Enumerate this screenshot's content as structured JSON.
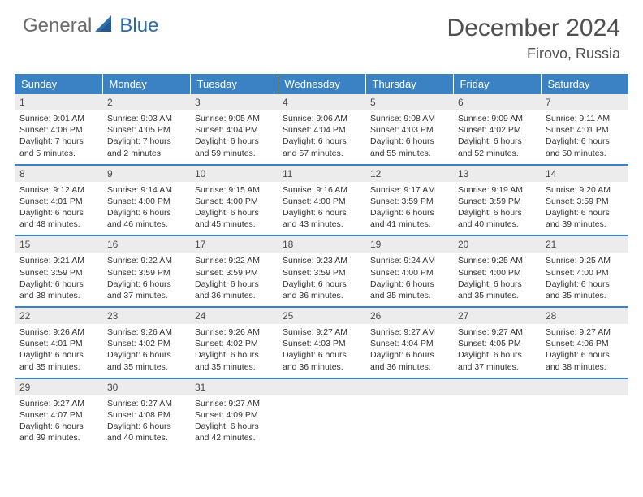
{
  "brand": {
    "part1": "General",
    "part2": "Blue"
  },
  "title": {
    "month": "December 2024",
    "location": "Firovo, Russia"
  },
  "colors": {
    "header_bg": "#3b82c4",
    "header_text": "#ffffff",
    "daynum_bg": "#ececec",
    "row_divider": "#3b82c4",
    "brand_gray": "#6b6b6b",
    "brand_blue": "#2e6ca8"
  },
  "weekdays": [
    "Sunday",
    "Monday",
    "Tuesday",
    "Wednesday",
    "Thursday",
    "Friday",
    "Saturday"
  ],
  "weeks": [
    [
      {
        "n": "1",
        "sr": "Sunrise: 9:01 AM",
        "ss": "Sunset: 4:06 PM",
        "d1": "Daylight: 7 hours",
        "d2": "and 5 minutes."
      },
      {
        "n": "2",
        "sr": "Sunrise: 9:03 AM",
        "ss": "Sunset: 4:05 PM",
        "d1": "Daylight: 7 hours",
        "d2": "and 2 minutes."
      },
      {
        "n": "3",
        "sr": "Sunrise: 9:05 AM",
        "ss": "Sunset: 4:04 PM",
        "d1": "Daylight: 6 hours",
        "d2": "and 59 minutes."
      },
      {
        "n": "4",
        "sr": "Sunrise: 9:06 AM",
        "ss": "Sunset: 4:04 PM",
        "d1": "Daylight: 6 hours",
        "d2": "and 57 minutes."
      },
      {
        "n": "5",
        "sr": "Sunrise: 9:08 AM",
        "ss": "Sunset: 4:03 PM",
        "d1": "Daylight: 6 hours",
        "d2": "and 55 minutes."
      },
      {
        "n": "6",
        "sr": "Sunrise: 9:09 AM",
        "ss": "Sunset: 4:02 PM",
        "d1": "Daylight: 6 hours",
        "d2": "and 52 minutes."
      },
      {
        "n": "7",
        "sr": "Sunrise: 9:11 AM",
        "ss": "Sunset: 4:01 PM",
        "d1": "Daylight: 6 hours",
        "d2": "and 50 minutes."
      }
    ],
    [
      {
        "n": "8",
        "sr": "Sunrise: 9:12 AM",
        "ss": "Sunset: 4:01 PM",
        "d1": "Daylight: 6 hours",
        "d2": "and 48 minutes."
      },
      {
        "n": "9",
        "sr": "Sunrise: 9:14 AM",
        "ss": "Sunset: 4:00 PM",
        "d1": "Daylight: 6 hours",
        "d2": "and 46 minutes."
      },
      {
        "n": "10",
        "sr": "Sunrise: 9:15 AM",
        "ss": "Sunset: 4:00 PM",
        "d1": "Daylight: 6 hours",
        "d2": "and 45 minutes."
      },
      {
        "n": "11",
        "sr": "Sunrise: 9:16 AM",
        "ss": "Sunset: 4:00 PM",
        "d1": "Daylight: 6 hours",
        "d2": "and 43 minutes."
      },
      {
        "n": "12",
        "sr": "Sunrise: 9:17 AM",
        "ss": "Sunset: 3:59 PM",
        "d1": "Daylight: 6 hours",
        "d2": "and 41 minutes."
      },
      {
        "n": "13",
        "sr": "Sunrise: 9:19 AM",
        "ss": "Sunset: 3:59 PM",
        "d1": "Daylight: 6 hours",
        "d2": "and 40 minutes."
      },
      {
        "n": "14",
        "sr": "Sunrise: 9:20 AM",
        "ss": "Sunset: 3:59 PM",
        "d1": "Daylight: 6 hours",
        "d2": "and 39 minutes."
      }
    ],
    [
      {
        "n": "15",
        "sr": "Sunrise: 9:21 AM",
        "ss": "Sunset: 3:59 PM",
        "d1": "Daylight: 6 hours",
        "d2": "and 38 minutes."
      },
      {
        "n": "16",
        "sr": "Sunrise: 9:22 AM",
        "ss": "Sunset: 3:59 PM",
        "d1": "Daylight: 6 hours",
        "d2": "and 37 minutes."
      },
      {
        "n": "17",
        "sr": "Sunrise: 9:22 AM",
        "ss": "Sunset: 3:59 PM",
        "d1": "Daylight: 6 hours",
        "d2": "and 36 minutes."
      },
      {
        "n": "18",
        "sr": "Sunrise: 9:23 AM",
        "ss": "Sunset: 3:59 PM",
        "d1": "Daylight: 6 hours",
        "d2": "and 36 minutes."
      },
      {
        "n": "19",
        "sr": "Sunrise: 9:24 AM",
        "ss": "Sunset: 4:00 PM",
        "d1": "Daylight: 6 hours",
        "d2": "and 35 minutes."
      },
      {
        "n": "20",
        "sr": "Sunrise: 9:25 AM",
        "ss": "Sunset: 4:00 PM",
        "d1": "Daylight: 6 hours",
        "d2": "and 35 minutes."
      },
      {
        "n": "21",
        "sr": "Sunrise: 9:25 AM",
        "ss": "Sunset: 4:00 PM",
        "d1": "Daylight: 6 hours",
        "d2": "and 35 minutes."
      }
    ],
    [
      {
        "n": "22",
        "sr": "Sunrise: 9:26 AM",
        "ss": "Sunset: 4:01 PM",
        "d1": "Daylight: 6 hours",
        "d2": "and 35 minutes."
      },
      {
        "n": "23",
        "sr": "Sunrise: 9:26 AM",
        "ss": "Sunset: 4:02 PM",
        "d1": "Daylight: 6 hours",
        "d2": "and 35 minutes."
      },
      {
        "n": "24",
        "sr": "Sunrise: 9:26 AM",
        "ss": "Sunset: 4:02 PM",
        "d1": "Daylight: 6 hours",
        "d2": "and 35 minutes."
      },
      {
        "n": "25",
        "sr": "Sunrise: 9:27 AM",
        "ss": "Sunset: 4:03 PM",
        "d1": "Daylight: 6 hours",
        "d2": "and 36 minutes."
      },
      {
        "n": "26",
        "sr": "Sunrise: 9:27 AM",
        "ss": "Sunset: 4:04 PM",
        "d1": "Daylight: 6 hours",
        "d2": "and 36 minutes."
      },
      {
        "n": "27",
        "sr": "Sunrise: 9:27 AM",
        "ss": "Sunset: 4:05 PM",
        "d1": "Daylight: 6 hours",
        "d2": "and 37 minutes."
      },
      {
        "n": "28",
        "sr": "Sunrise: 9:27 AM",
        "ss": "Sunset: 4:06 PM",
        "d1": "Daylight: 6 hours",
        "d2": "and 38 minutes."
      }
    ],
    [
      {
        "n": "29",
        "sr": "Sunrise: 9:27 AM",
        "ss": "Sunset: 4:07 PM",
        "d1": "Daylight: 6 hours",
        "d2": "and 39 minutes."
      },
      {
        "n": "30",
        "sr": "Sunrise: 9:27 AM",
        "ss": "Sunset: 4:08 PM",
        "d1": "Daylight: 6 hours",
        "d2": "and 40 minutes."
      },
      {
        "n": "31",
        "sr": "Sunrise: 9:27 AM",
        "ss": "Sunset: 4:09 PM",
        "d1": "Daylight: 6 hours",
        "d2": "and 42 minutes."
      },
      {
        "empty": true
      },
      {
        "empty": true
      },
      {
        "empty": true
      },
      {
        "empty": true
      }
    ]
  ]
}
